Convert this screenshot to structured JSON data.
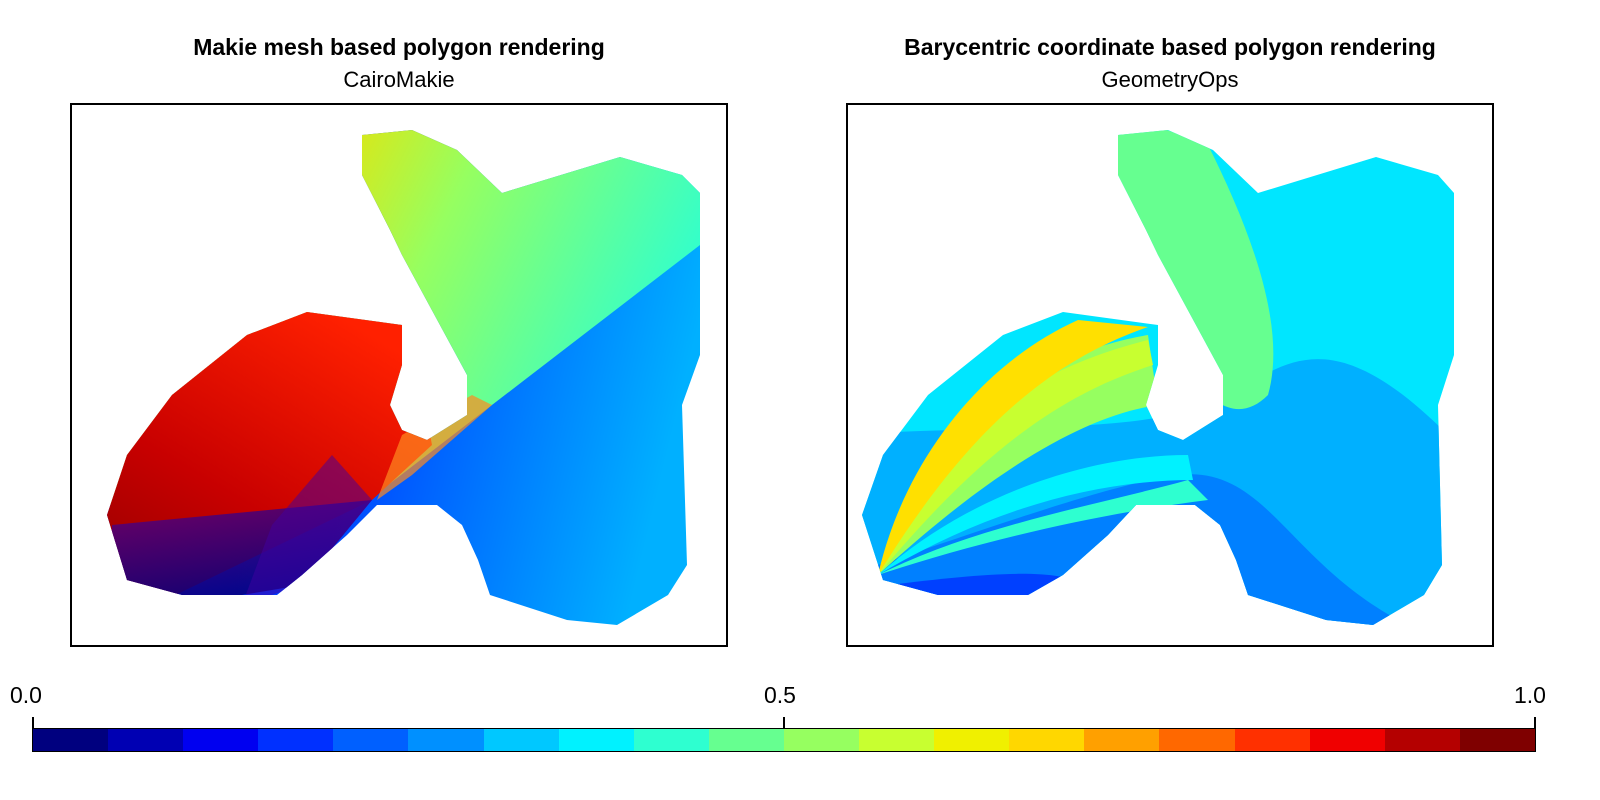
{
  "panels": [
    {
      "title": "Makie mesh based polygon rendering",
      "subtitle": "CairoMakie"
    },
    {
      "title": "Barycentric coordinate based polygon rendering",
      "subtitle": "GeometryOps"
    }
  ],
  "colorbar": {
    "ticks": [
      "0.0",
      "0.5",
      "1.0"
    ],
    "colormap": "jet",
    "segment_colors": [
      "#00007f",
      "#0000b3",
      "#0000f0",
      "#0030ff",
      "#0060ff",
      "#0090ff",
      "#00c8ff",
      "#00f2ff",
      "#2effd0",
      "#66ff90",
      "#96ff60",
      "#c8ff30",
      "#f0f000",
      "#ffd700",
      "#ffa000",
      "#ff6800",
      "#ff3000",
      "#f00000",
      "#b40000",
      "#7f0000"
    ]
  },
  "chart_data": {
    "type": "heatmap",
    "colorbar_range": [
      0.0,
      1.0
    ],
    "grid": false,
    "legend_placement": "bottom"
  }
}
